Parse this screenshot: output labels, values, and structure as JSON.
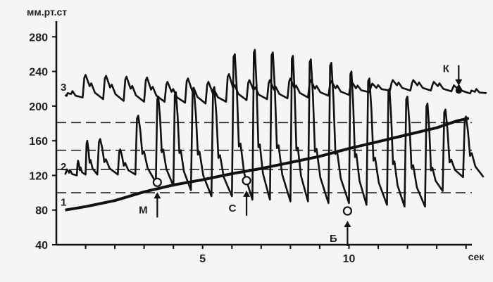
{
  "chart_data": {
    "type": "line",
    "ylabel": "мм.рт.ст",
    "xlabel": "сек",
    "ylim": [
      40,
      290
    ],
    "xlim": [
      0,
      14.2
    ],
    "y_ticks": [
      40,
      80,
      120,
      160,
      200,
      240,
      280
    ],
    "x_ticks": [
      5,
      10
    ],
    "grid": false,
    "reference_lines": [
      {
        "y": 100
      },
      {
        "y": 127
      },
      {
        "y": 149
      },
      {
        "y": 181
      }
    ],
    "series": [
      {
        "name": "1",
        "x": [
          0.3,
          1.0,
          2.0,
          3.0,
          4.0,
          5.0,
          6.0,
          7.0,
          8.0,
          9.0,
          10.0,
          11.0,
          12.0,
          13.0,
          13.7,
          14.1
        ],
        "y": [
          80,
          84,
          91,
          101,
          109,
          115,
          122,
          128,
          135,
          142,
          151,
          159,
          167,
          175,
          183,
          186
        ]
      },
      {
        "name": "2",
        "x": [
          0.3,
          0.7,
          1.0,
          1.4,
          2.1,
          2.7,
          3.4,
          4.0,
          4.6,
          5.3,
          6.0,
          6.7,
          7.3,
          8.0,
          8.6,
          9.3,
          10.0,
          10.6,
          11.3,
          11.9,
          12.6,
          13.2,
          13.9
        ],
        "peak": [
          127,
          137,
          160,
          162,
          150,
          189,
          211,
          216,
          220,
          222,
          260,
          265,
          262,
          258,
          254,
          250,
          240,
          232,
          220,
          211,
          203,
          196,
          188
        ],
        "trough": [
          121,
          120,
          121,
          121,
          121,
          121,
          112,
          108,
          103,
          96,
          96,
          92,
          92,
          90,
          90,
          88,
          88,
          86,
          86,
          84,
          84,
          102,
          118
        ]
      },
      {
        "name": "3",
        "x": [
          0.3,
          0.9,
          1.6,
          2.3,
          3.0,
          3.7,
          4.4,
          5.1,
          5.8,
          6.5,
          7.2,
          7.9,
          8.6,
          9.3,
          10.0,
          10.7,
          11.4,
          12.1,
          12.8,
          13.5,
          14.1
        ],
        "peak": [
          215,
          236,
          235,
          234,
          233,
          228,
          232,
          228,
          237,
          230,
          230,
          232,
          230,
          229,
          228,
          226,
          230,
          230,
          228,
          224,
          218
        ],
        "trough": [
          213,
          210,
          208,
          206,
          205,
          205,
          204,
          203,
          205,
          207,
          208,
          209,
          210,
          212,
          213,
          216,
          218,
          218,
          218,
          217,
          215
        ]
      }
    ],
    "annotations": [
      {
        "label": "М",
        "x": 3.45,
        "y": 112
      },
      {
        "label": "С",
        "x": 6.5,
        "y": 114
      },
      {
        "label": "Б",
        "x": 9.95,
        "y": 79
      },
      {
        "label": "К",
        "x": 13.75,
        "y": 218
      }
    ]
  }
}
